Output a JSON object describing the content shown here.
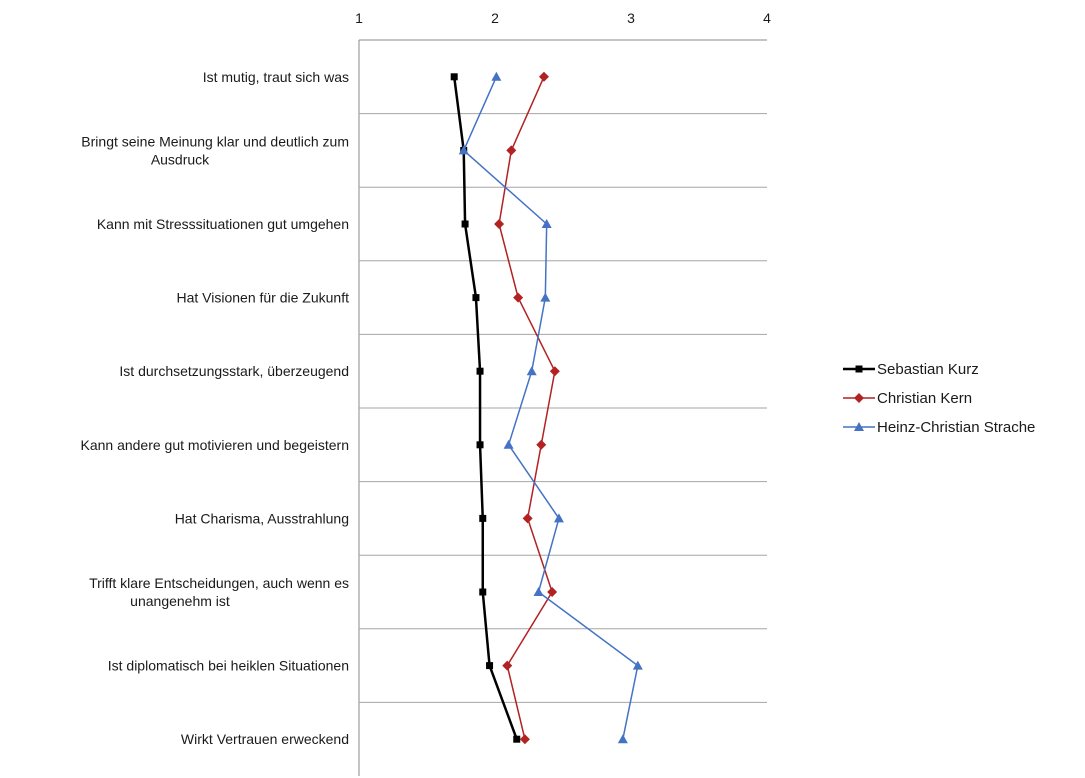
{
  "chart_data": {
    "type": "line",
    "orientation": "horizontal-values",
    "xlim": [
      1,
      4
    ],
    "x_ticks": [
      "1",
      "2",
      "3",
      "4"
    ],
    "x_axis_position": "top",
    "grid": "horizontal category separators",
    "legend_position": "right",
    "categories": [
      [
        "Ist mutig, traut sich was"
      ],
      [
        "Bringt seine Meinung klar und deutlich zum",
        "Ausdruck"
      ],
      [
        "Kann mit Stresssituationen gut umgehen"
      ],
      [
        "Hat Visionen für die Zukunft"
      ],
      [
        "Ist durchsetzungsstark, überzeugend"
      ],
      [
        "Kann andere gut motivieren und begeistern"
      ],
      [
        "Hat Charisma, Ausstrahlung"
      ],
      [
        "Trifft klare Entscheidungen, auch wenn es",
        "unangenehm ist"
      ],
      [
        "Ist diplomatisch bei heiklen Situationen"
      ],
      [
        "Wirkt Vertrauen erweckend"
      ]
    ],
    "series": [
      {
        "name": "Sebastian Kurz",
        "color": "#000000",
        "marker": "square",
        "values": [
          1.7,
          1.77,
          1.78,
          1.86,
          1.89,
          1.89,
          1.91,
          1.91,
          1.96,
          2.16
        ]
      },
      {
        "name": "Christian Kern",
        "color": "#b22222",
        "marker": "diamond",
        "values": [
          2.36,
          2.12,
          2.03,
          2.17,
          2.44,
          2.34,
          2.24,
          2.42,
          2.09,
          2.22
        ]
      },
      {
        "name": "Heinz-Christian Strache",
        "color": "#4472c4",
        "marker": "triangle",
        "values": [
          2.01,
          1.77,
          2.38,
          2.37,
          2.27,
          2.1,
          2.47,
          2.32,
          3.05,
          2.94
        ]
      }
    ]
  }
}
